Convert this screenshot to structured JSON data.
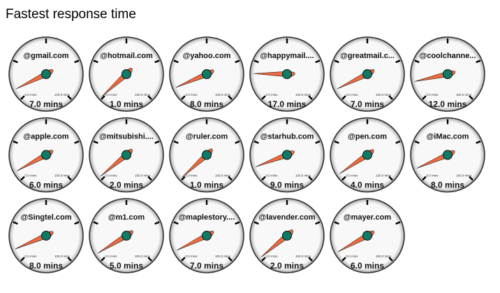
{
  "title": "Fastest response time",
  "colors": {
    "needle": "#f26a3c",
    "hub": "#0f7a66",
    "face": "#f8f8f8",
    "rim": "#333333"
  },
  "chart_data": {
    "type": "gauge",
    "title": "Fastest response time",
    "min": 0,
    "max": 100,
    "min_label": "0.0 mins",
    "max_label": "100.0 mins",
    "unit": "mins",
    "gauges": [
      {
        "name": "@gmail.com",
        "value": 7.0,
        "label": "7.0 mins"
      },
      {
        "name": "@hotmail.com",
        "value": 1.0,
        "label": "1.0 mins"
      },
      {
        "name": "@yahoo.com",
        "value": 8.0,
        "label": "8.0 mins"
      },
      {
        "name": "@happymail....",
        "value": 17.0,
        "label": "17.0 mins"
      },
      {
        "name": "@greatmail.c...",
        "value": 7.0,
        "label": "7.0 mins"
      },
      {
        "name": "@coolchanne...",
        "value": 12.0,
        "label": "12.0 mins"
      },
      {
        "name": "@apple.com",
        "value": 6.0,
        "label": "6.0 mins"
      },
      {
        "name": "@mitsubishi....",
        "value": 2.0,
        "label": "2.0 mins"
      },
      {
        "name": "@ruler.com",
        "value": 1.0,
        "label": "1.0 mins"
      },
      {
        "name": "@starhub.com",
        "value": 9.0,
        "label": "9.0 mins"
      },
      {
        "name": "@pen.com",
        "value": 4.0,
        "label": "4.0 mins"
      },
      {
        "name": "@iMac.com",
        "value": 8.0,
        "label": "8.0 mins"
      },
      {
        "name": "@Singtel.com",
        "value": 8.0,
        "label": "8.0 mins"
      },
      {
        "name": "@m1.com",
        "value": 5.0,
        "label": "5.0 mins"
      },
      {
        "name": "@maplestory....",
        "value": 7.0,
        "label": "7.0 mins"
      },
      {
        "name": "@lavender.com",
        "value": 2.0,
        "label": "2.0 mins"
      },
      {
        "name": "@mayer.com",
        "value": 6.0,
        "label": "6.0 mins"
      }
    ]
  }
}
